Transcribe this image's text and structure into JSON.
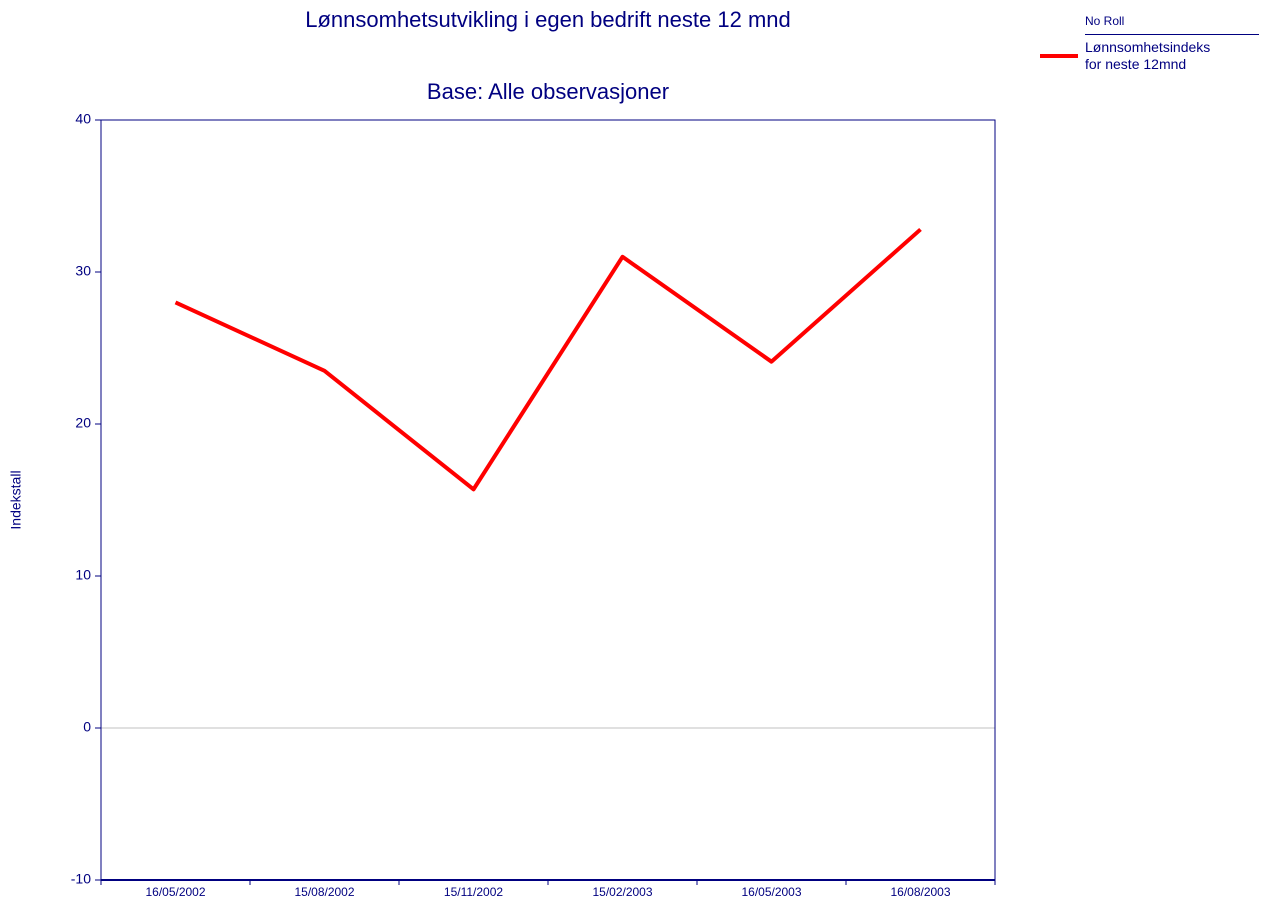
{
  "chart_data": {
    "type": "line",
    "title": "Lønnsomhetsutvikling i egen bedrift neste 12 mnd",
    "subtitle": "Base: Alle observasjoner",
    "y_label": "Indekstall",
    "legend_title": "No Roll",
    "legend_position": "top-right",
    "categories": [
      "16/05/2002",
      "15/08/2002",
      "15/11/2002",
      "15/02/2003",
      "16/05/2003",
      "16/08/2003"
    ],
    "series": [
      {
        "name": "Lønnsomhetsindeks for neste 12mnd",
        "color": "#ff0000",
        "values": [
          28.0,
          23.5,
          15.7,
          31.0,
          24.1,
          32.8
        ]
      }
    ],
    "ylim": [
      -10,
      40
    ],
    "yticks": [
      -10,
      0,
      10,
      20,
      30,
      40
    ]
  }
}
